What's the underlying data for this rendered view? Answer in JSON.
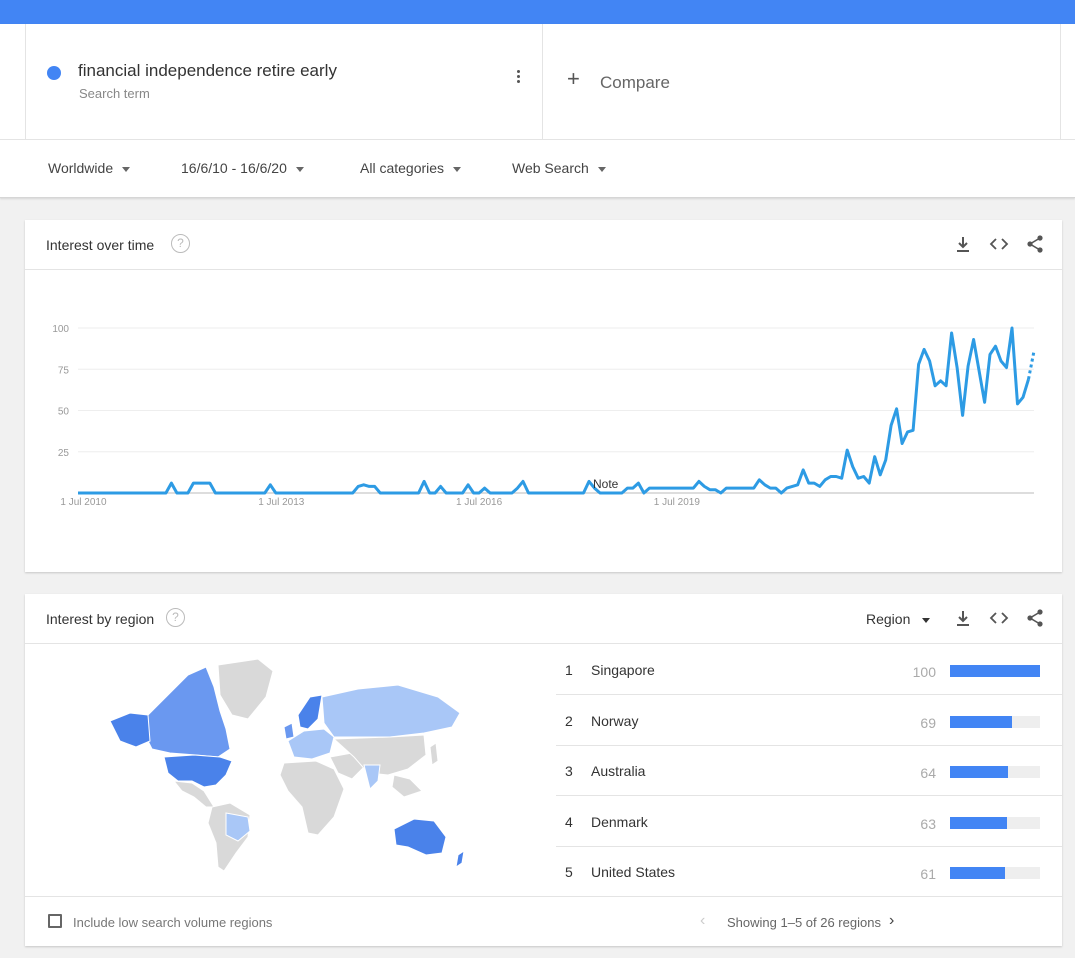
{
  "search": {
    "term": "financial independence retire early",
    "term_type": "Search term",
    "term_color": "#4285f4",
    "compare_label": "Compare"
  },
  "filters": {
    "region": "Worldwide",
    "date_range": "16/6/10 - 16/6/20",
    "category": "All categories",
    "search_type": "Web Search"
  },
  "interest_over_time": {
    "title": "Interest over time",
    "note_label": "Note"
  },
  "chart_data": {
    "type": "line",
    "title": "Interest over time",
    "xlabel": "",
    "ylabel": "",
    "x_tick_labels": [
      "1 Jul 2010",
      "1 Jul 2013",
      "1 Jul 2016",
      "1 Jul 2019"
    ],
    "y_tick_labels": [
      "100",
      "75",
      "50",
      "25"
    ],
    "ylim": [
      0,
      100
    ],
    "grid": true,
    "x_start": "2010-06",
    "x_step": "1 month",
    "series": [
      {
        "color": "#2d9be4",
        "partial_last_segment": "dotted",
        "values": [
          0,
          0,
          0,
          0,
          0,
          0,
          0,
          0,
          0,
          0,
          0,
          0,
          0,
          0,
          0,
          0,
          0,
          6,
          0,
          0,
          0,
          6,
          6,
          6,
          6,
          0,
          0,
          0,
          0,
          0,
          0,
          0,
          0,
          0,
          0,
          5,
          0,
          0,
          0,
          0,
          0,
          0,
          0,
          0,
          0,
          0,
          0,
          0,
          0,
          0,
          0,
          4,
          5,
          4,
          4,
          0,
          0,
          0,
          0,
          0,
          0,
          0,
          0,
          7,
          0,
          0,
          4,
          0,
          0,
          0,
          0,
          5,
          0,
          0,
          3,
          0,
          0,
          0,
          0,
          0,
          3,
          7,
          0,
          0,
          0,
          0,
          0,
          0,
          0,
          0,
          0,
          0,
          0,
          7,
          3,
          0,
          0,
          0,
          0,
          0,
          3,
          3,
          6,
          0,
          3,
          3,
          3,
          3,
          3,
          3,
          3,
          3,
          3,
          7,
          4,
          2,
          2,
          0,
          3,
          3,
          3,
          3,
          3,
          3,
          8,
          5,
          3,
          3,
          0,
          3,
          4,
          5,
          14,
          6,
          6,
          4,
          8,
          10,
          10,
          9,
          26,
          16,
          9,
          10,
          6,
          22,
          11,
          20,
          41,
          51,
          30,
          37,
          38,
          78,
          87,
          80,
          65,
          68,
          65,
          97,
          76,
          47,
          77,
          93,
          74,
          55,
          84,
          89,
          80,
          76,
          100,
          54,
          58,
          69,
          86
        ]
      }
    ]
  },
  "interest_by_region": {
    "title": "Interest by region",
    "resolution_select": "Region",
    "rankings": [
      {
        "rank": "1",
        "name": "Singapore",
        "value": "100",
        "fraction": 1.0
      },
      {
        "rank": "2",
        "name": "Norway",
        "value": "69",
        "fraction": 0.69
      },
      {
        "rank": "3",
        "name": "Australia",
        "value": "64",
        "fraction": 0.64
      },
      {
        "rank": "4",
        "name": "Denmark",
        "value": "63",
        "fraction": 0.63
      },
      {
        "rank": "5",
        "name": "United States",
        "value": "61",
        "fraction": 0.61
      }
    ],
    "include_low_volume_label": "Include low search volume regions",
    "include_low_volume_checked": false,
    "pagination": "Showing 1–5 of 26 regions"
  },
  "colors": {
    "brand_blue": "#4285f4",
    "map_strong": "#4a82ea",
    "map_medium": "#6a98f0",
    "map_light": "#a9c7f7",
    "map_none": "#d9d9d9"
  },
  "icons": {
    "download": "download-icon",
    "embed": "embed-code-icon",
    "share": "share-icon",
    "help": "help-circle-icon",
    "more": "more-vert-icon",
    "add": "plus-icon"
  }
}
